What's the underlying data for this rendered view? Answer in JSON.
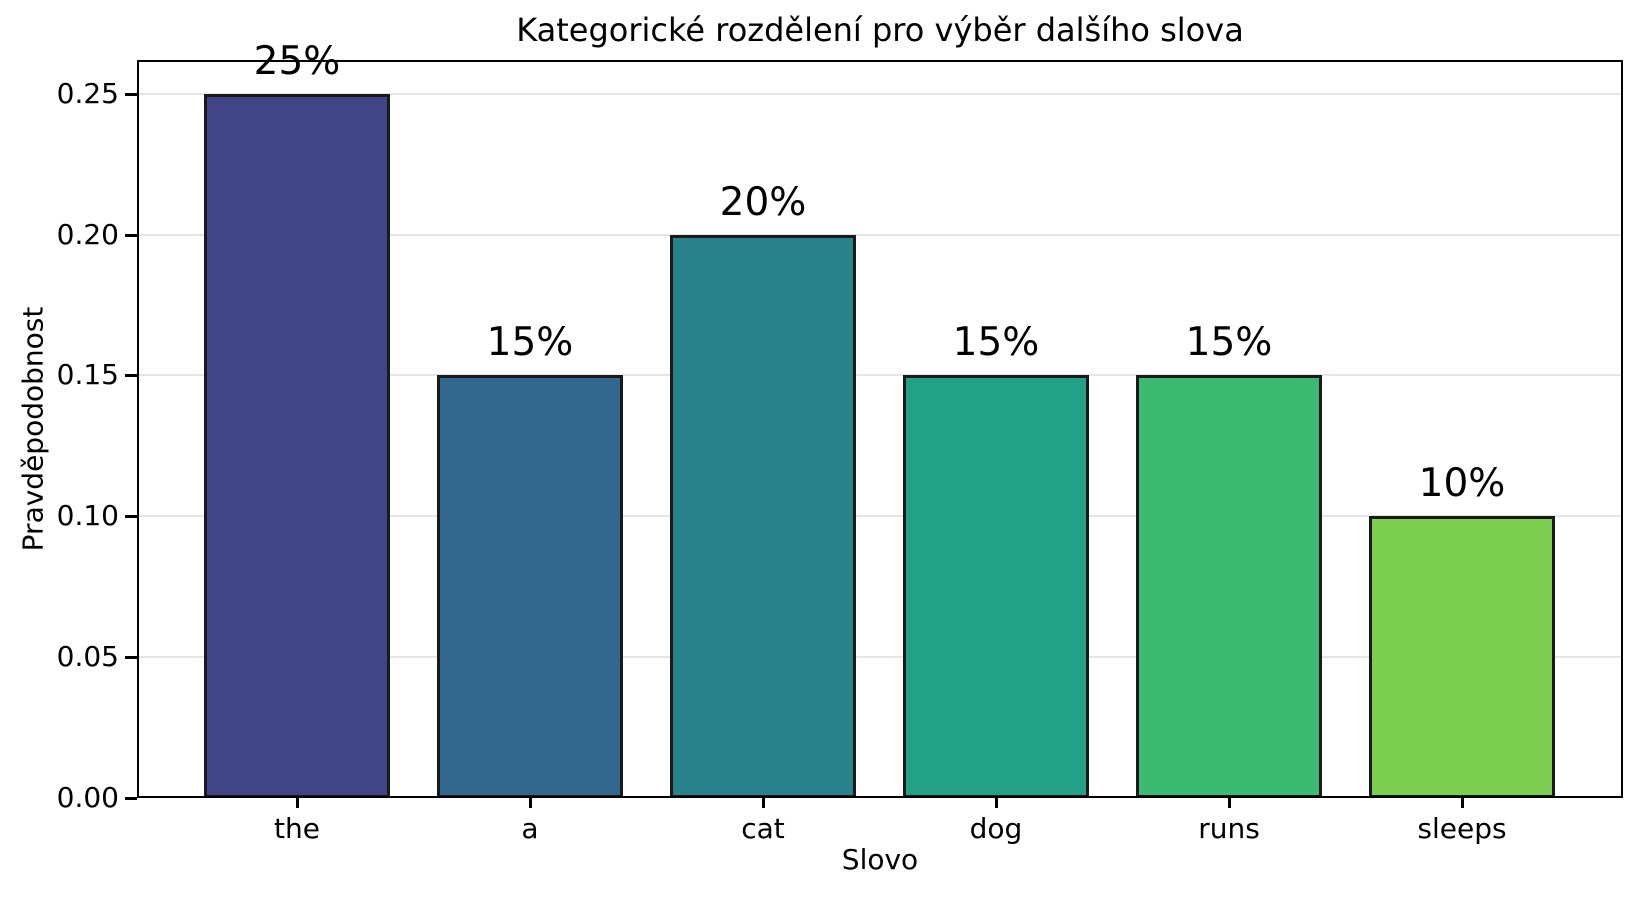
{
  "chart_data": {
    "type": "bar",
    "title": "Kategorické rozdělení pro výběr dalšího slova",
    "xlabel": "Slovo",
    "ylabel": "Pravděpodobnost",
    "categories": [
      "the",
      "a",
      "cat",
      "dog",
      "runs",
      "sleeps"
    ],
    "values": [
      0.25,
      0.15,
      0.2,
      0.15,
      0.15,
      0.1
    ],
    "bar_labels": [
      "25%",
      "15%",
      "20%",
      "15%",
      "15%",
      "10%"
    ],
    "bar_colors": [
      "#414487",
      "#32678e",
      "#27828c",
      "#22a186",
      "#3cba71",
      "#7bce50"
    ],
    "bar_edge_color": "#1a1a1a",
    "y_tick_values": [
      0,
      0.05,
      0.1,
      0.15,
      0.2,
      0.25
    ],
    "y_tick_labels": [
      "0.00",
      "0.05",
      "0.10",
      "0.15",
      "0.20",
      "0.25"
    ],
    "ylim": [
      0,
      0.262
    ],
    "grid": {
      "axis": "y",
      "color": "#e6e6e6"
    },
    "legend": "none",
    "background": "#ffffff"
  }
}
